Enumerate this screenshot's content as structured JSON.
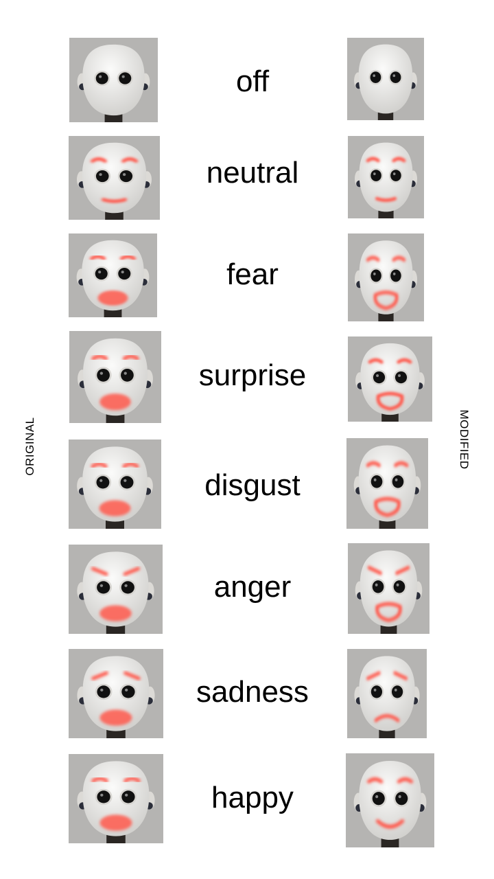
{
  "labels": {
    "left": "ORIGINAL",
    "right": "MODIFIED"
  },
  "rows": [
    {
      "emotion": "off",
      "original_led": false,
      "modified_led": false,
      "mouth": "none"
    },
    {
      "emotion": "neutral",
      "original_led": true,
      "modified_led": true,
      "mouth": "flat"
    },
    {
      "emotion": "fear",
      "original_led": true,
      "modified_led": true,
      "mouth": "open"
    },
    {
      "emotion": "surprise",
      "original_led": true,
      "modified_led": true,
      "mouth": "open"
    },
    {
      "emotion": "disgust",
      "original_led": true,
      "modified_led": true,
      "mouth": "open"
    },
    {
      "emotion": "anger",
      "original_led": true,
      "modified_led": true,
      "mouth": "open"
    },
    {
      "emotion": "sadness",
      "original_led": true,
      "modified_led": true,
      "mouth": "frown"
    },
    {
      "emotion": "happy",
      "original_led": true,
      "modified_led": true,
      "mouth": "smile"
    }
  ],
  "colors": {
    "led": "#ff5a4e",
    "face": "#ecebe8",
    "eye": "#111111",
    "background": "#b5b4b2"
  }
}
